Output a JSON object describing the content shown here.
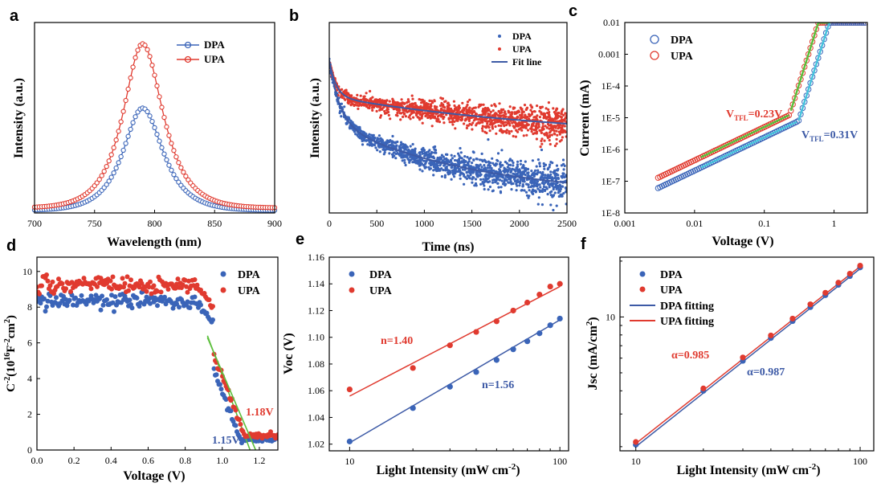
{
  "colors": {
    "dpa": "#3a64b8",
    "upa": "#e03a2f",
    "fit_blue": "#3d5aa6",
    "fit_red": "#e03a2f",
    "green": "#5cbf3c",
    "cyan": "#46c3dd"
  },
  "chart_data": [
    {
      "panel": "a",
      "type": "line",
      "xlabel": "Wavelength (nm)",
      "ylabel": "Intensity (a.u.)",
      "xlim": [
        700,
        900
      ],
      "xticks": [
        700,
        750,
        800,
        850,
        900
      ],
      "ylim": [
        0,
        1.0
      ],
      "yticks_visible": false,
      "legend": "top-right",
      "series": [
        {
          "name": "DPA",
          "marker": "open-circle",
          "peak_x": 790,
          "peak_y": 0.62,
          "sigma_left": 20,
          "sigma_right": 21,
          "baseline": 0.015
        },
        {
          "name": "UPA",
          "marker": "open-circle",
          "peak_x": 790,
          "peak_y": 1.0,
          "sigma_left": 20,
          "sigma_right": 21,
          "baseline": 0.03
        }
      ]
    },
    {
      "panel": "b",
      "type": "scatter",
      "xlabel": "Time (ns)",
      "ylabel": "Intensity (a.u.)",
      "xlim": [
        0,
        2500
      ],
      "xticks": [
        0,
        500,
        1000,
        1500,
        2000,
        2500
      ],
      "yscale": "log",
      "yticks_visible": false,
      "legend": "top-right",
      "series": [
        {
          "name": "DPA",
          "marker": "dot"
        },
        {
          "name": "UPA",
          "marker": "dot"
        },
        {
          "name": "Fit line",
          "marker": "line"
        }
      ]
    },
    {
      "panel": "c",
      "type": "scatter",
      "xlabel": "Voltage (V)",
      "ylabel": "Current (mA)",
      "xscale": "log",
      "yscale": "log",
      "xlim": [
        0.001,
        3
      ],
      "ylim": [
        1e-08,
        0.01
      ],
      "xtick_labels": [
        "0.001",
        "0.01",
        "0.1",
        "1"
      ],
      "ytick_labels": [
        "0.01",
        "0.001",
        "1E-4",
        "1E-5",
        "1E-6",
        "1E-7",
        "1E-8"
      ],
      "legend": "top-left",
      "series": [
        {
          "name": "DPA",
          "marker": "open-circle"
        },
        {
          "name": "UPA",
          "marker": "open-circle"
        }
      ],
      "annotations": [
        {
          "series": "UPA",
          "label": "V",
          "sub": "TFL",
          "value": "=0.23V"
        },
        {
          "series": "DPA",
          "label": "V",
          "sub": "TFL",
          "value": "=0.31V"
        }
      ]
    },
    {
      "panel": "d",
      "type": "scatter",
      "xlabel": "Voltage (V)",
      "ylabel": {
        "base": "C",
        "sup1": "-2",
        "mid": "(10",
        "sup2": "16",
        "unit": "F",
        "sup3": "-2",
        "tail": "cm",
        "sup4": "2",
        "close": ")"
      },
      "xlim": [
        0,
        1.3
      ],
      "ylim": [
        0,
        10.8
      ],
      "xticks": [
        "0.0",
        "0.2",
        "0.4",
        "0.6",
        "0.8",
        "1.0",
        "1.2"
      ],
      "yticks": [
        "0",
        "2",
        "4",
        "6",
        "8",
        "10"
      ],
      "legend": "top-right",
      "series": [
        {
          "name": "DPA",
          "marker": "dot",
          "plateau": 8.3,
          "vbi": 1.15
        },
        {
          "name": "UPA",
          "marker": "dot",
          "plateau": 9.2,
          "vbi": 1.18
        }
      ],
      "annotations": [
        {
          "series": "UPA",
          "text": "1.18V"
        },
        {
          "series": "DPA",
          "text": "1.15V"
        }
      ]
    },
    {
      "panel": "e",
      "type": "scatter",
      "xlabel": {
        "base": "Light Intensity (mW cm",
        "sup": "-2",
        "close": ")"
      },
      "ylabel": "Voc (V)",
      "xscale": "log",
      "xlim": [
        8,
        110
      ],
      "ylim": [
        1.015,
        1.16
      ],
      "xtick_labels": [
        "10",
        "100"
      ],
      "yticks": [
        "1.02",
        "1.04",
        "1.06",
        "1.08",
        "1.10",
        "1.12",
        "1.14",
        "1.16"
      ],
      "legend": "top-left",
      "x": [
        10,
        20,
        30,
        40,
        50,
        60,
        70,
        80,
        90,
        100
      ],
      "series": [
        {
          "name": "DPA",
          "marker": "dot",
          "values": [
            1.022,
            1.047,
            1.063,
            1.074,
            1.083,
            1.091,
            1.097,
            1.103,
            1.109,
            1.114
          ],
          "fit": [
            1.021,
            1.113
          ]
        },
        {
          "name": "UPA",
          "marker": "dot",
          "values": [
            1.061,
            1.077,
            1.094,
            1.104,
            1.112,
            1.12,
            1.126,
            1.132,
            1.138,
            1.14
          ],
          "fit": [
            1.056,
            1.138
          ]
        }
      ],
      "annotations": [
        {
          "series": "UPA",
          "text": "n=1.40"
        },
        {
          "series": "DPA",
          "text": "n=1.56"
        }
      ]
    },
    {
      "panel": "f",
      "type": "scatter",
      "xlabel": {
        "base": "Light Intensity (mW cm",
        "sup": "-2",
        "close": ")"
      },
      "ylabel": {
        "base": "Jsc (mA/cm",
        "sup": "2",
        "close": ")"
      },
      "xscale": "log",
      "yscale": "log",
      "xlim": [
        8.5,
        115
      ],
      "ylim": [
        1.9,
        21
      ],
      "xtick_labels": [
        "10",
        "100"
      ],
      "ytick_labels": [
        "10"
      ],
      "legend": "top-left",
      "x": [
        10,
        20,
        30,
        40,
        50,
        60,
        70,
        80,
        90,
        100
      ],
      "series": [
        {
          "name": "DPA",
          "marker": "dot",
          "values": [
            2.05,
            4.0,
            5.8,
            7.7,
            9.5,
            11.3,
            13.1,
            14.9,
            16.6,
            18.5
          ]
        },
        {
          "name": "UPA",
          "marker": "dot",
          "values": [
            2.12,
            4.12,
            6.05,
            7.95,
            9.8,
            11.7,
            13.5,
            15.3,
            17.1,
            18.9
          ]
        },
        {
          "name": "DPA fitting",
          "marker": "line",
          "fit": [
            2.0,
            18.2
          ]
        },
        {
          "name": "UPA fitting",
          "marker": "line",
          "fit": [
            2.08,
            18.7
          ]
        }
      ],
      "annotations": [
        {
          "series": "UPA",
          "text": "α=0.985"
        },
        {
          "series": "DPA",
          "text": "α=0.987"
        }
      ]
    }
  ]
}
